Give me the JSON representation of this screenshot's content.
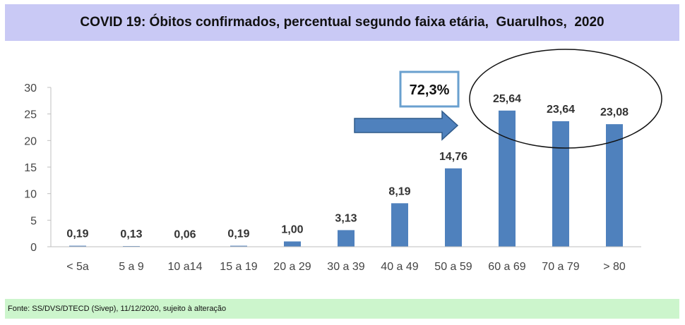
{
  "chart_data": {
    "type": "bar",
    "title": "COVID 19: Óbitos confirmados, percentual segundo faixa etária,  Guarulhos,  2020",
    "categories": [
      "< 5a",
      "5 a 9",
      "10 a14",
      "15 a 19",
      "20 a 29",
      "30 a 39",
      "40 a 49",
      "50 a 59",
      "60 a 69",
      "70 a 79",
      "> 80"
    ],
    "values": [
      0.19,
      0.13,
      0.06,
      0.19,
      1.0,
      3.13,
      8.19,
      14.76,
      25.64,
      23.64,
      23.08
    ],
    "value_labels": [
      "0,19",
      "0,13",
      "0,06",
      "0,19",
      "1,00",
      "3,13",
      "8,19",
      "14,76",
      "25,64",
      "23,64",
      "23,08"
    ],
    "ylim": [
      0,
      30
    ],
    "yticks": [
      "0",
      "5",
      "10",
      "15",
      "20",
      "25",
      "30"
    ],
    "grid": false,
    "bar_color": "#4f81bd",
    "annotation": {
      "text": "72,3%",
      "highlight": "60 a 69 – > 80"
    }
  },
  "footer": {
    "source": "Fonte: SS/DVS/DTECD (Sivep), 11/12/2020, sujeito à alteração"
  },
  "colors": {
    "title_bg": "#c9c9f5",
    "footer_bg": "#ccf5cc",
    "callout_border": "#6aa0cf",
    "arrow": "#4f81bd"
  }
}
